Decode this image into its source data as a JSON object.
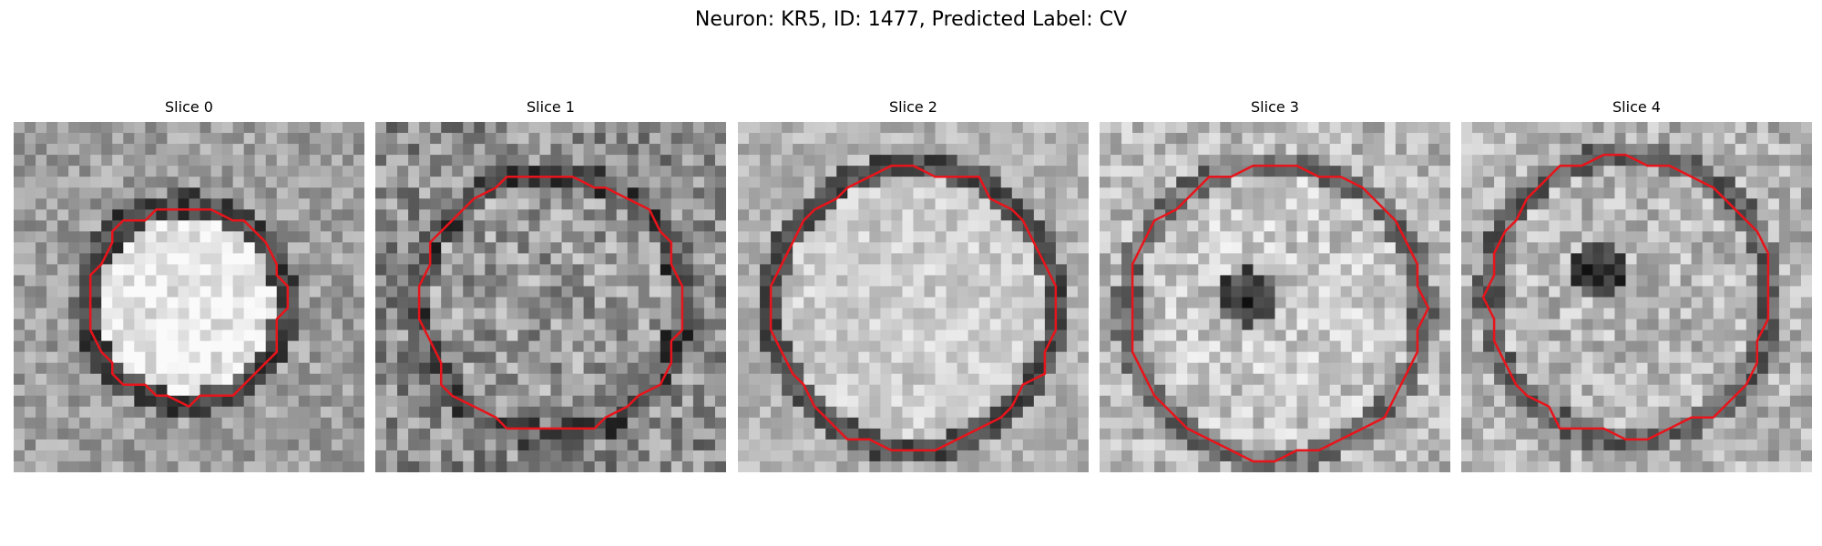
{
  "figure": {
    "title": "Neuron: KR5, ID: 1477, Predicted Label: CV"
  },
  "panels": [
    {
      "title": "Slice 0",
      "image": "grayscale-microscopy-slice",
      "contour_color": "#e8141b"
    },
    {
      "title": "Slice 1",
      "image": "grayscale-microscopy-slice",
      "contour_color": "#e8141b"
    },
    {
      "title": "Slice 2",
      "image": "grayscale-microscopy-slice",
      "contour_color": "#e8141b"
    },
    {
      "title": "Slice 3",
      "image": "grayscale-microscopy-slice",
      "contour_color": "#e8141b"
    },
    {
      "title": "Slice 4",
      "image": "grayscale-microscopy-slice",
      "contour_color": "#e8141b"
    }
  ]
}
